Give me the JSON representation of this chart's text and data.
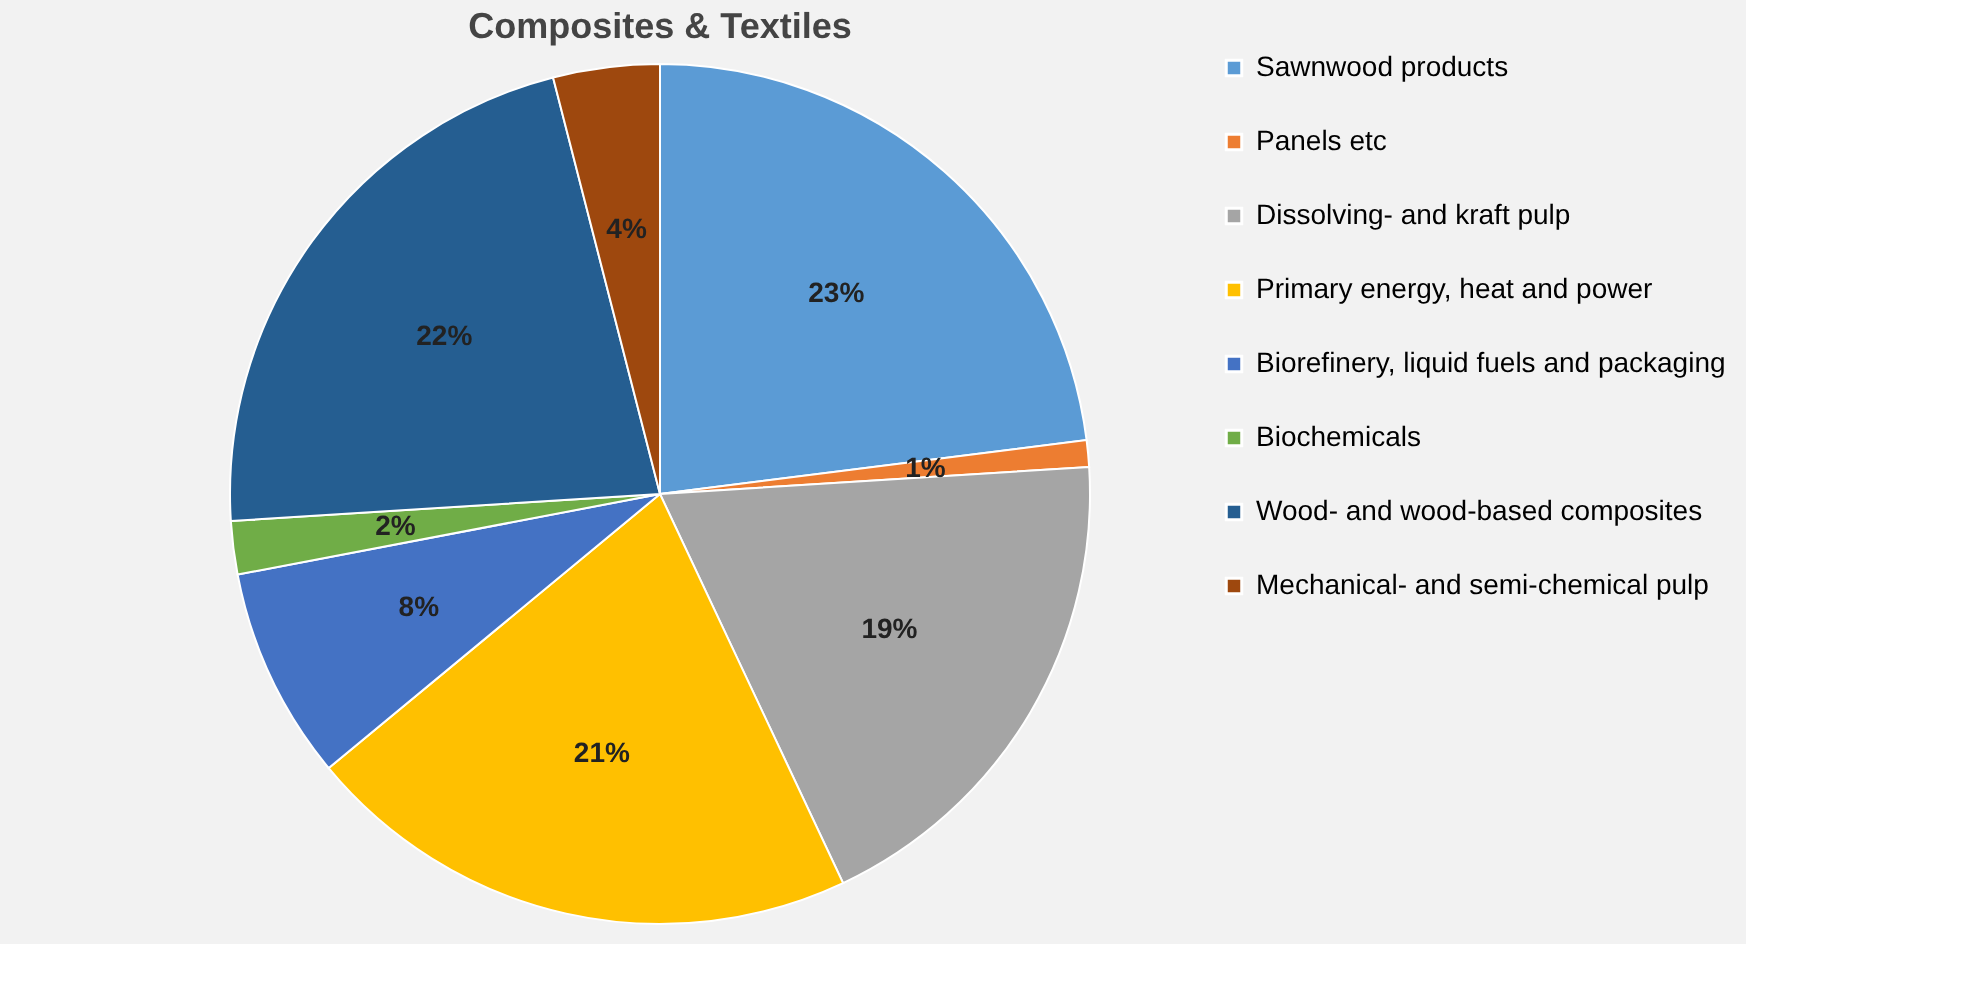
{
  "chart_data": {
    "type": "pie",
    "title": "Composites & Textiles",
    "categories": [
      "Sawnwood products",
      "Panels etc",
      "Dissolving- and kraft pulp",
      "Primary energy, heat and power",
      "Biorefinery, liquid fuels and packaging",
      "Biochemicals",
      "Wood- and wood-based composites",
      "Mechanical- and semi-chemical pulp"
    ],
    "values": [
      23,
      1,
      19,
      21,
      8,
      2,
      22,
      4
    ],
    "value_labels": [
      "23%",
      "1%",
      "19%",
      "21%",
      "8%",
      "2%",
      "22%",
      "4%"
    ],
    "colors": [
      "#5b9bd5",
      "#ed7d31",
      "#a5a5a5",
      "#ffc000",
      "#4472c4",
      "#70ad47",
      "#255e91",
      "#9e480e"
    ],
    "legend": "right"
  }
}
